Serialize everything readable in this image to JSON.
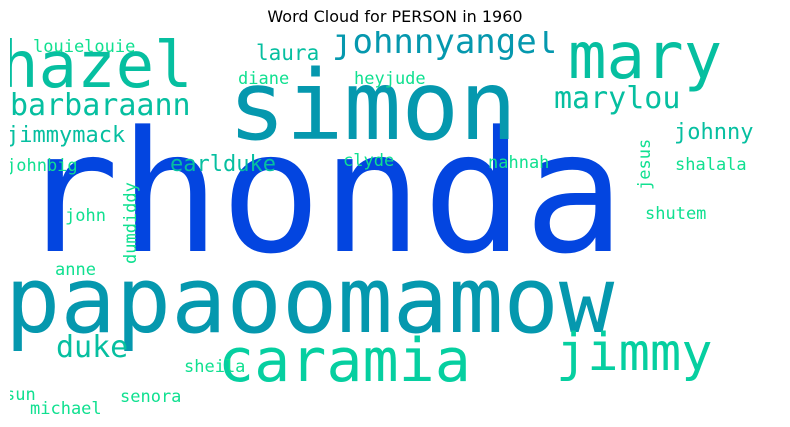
{
  "chart_data": {
    "type": "wordcloud",
    "title": "Word Cloud for PERSON in 1960",
    "words": [
      {
        "text": "rhonda",
        "color": "#0345e0"
      },
      {
        "text": "papaoomamow",
        "color": "#0598ae"
      },
      {
        "text": "simon",
        "color": "#0598ae"
      },
      {
        "text": "hazel",
        "color": "#06bfa0"
      },
      {
        "text": "mary",
        "color": "#06bfa0"
      },
      {
        "text": "caramia",
        "color": "#06cfa0"
      },
      {
        "text": "jimmy",
        "color": "#06cfa0"
      },
      {
        "text": "johnnyangel",
        "color": "#0598ae"
      },
      {
        "text": "barbaraann",
        "color": "#06bfa0"
      },
      {
        "text": "marylou",
        "color": "#06bfa0"
      },
      {
        "text": "duke",
        "color": "#06bfa0"
      },
      {
        "text": "jimmymack",
        "color": "#06bfa0"
      },
      {
        "text": "earlduke",
        "color": "#06bfa0"
      },
      {
        "text": "johnny",
        "color": "#06bfa0"
      },
      {
        "text": "laura",
        "color": "#06bfa0"
      },
      {
        "text": "louielouie",
        "color": "#10e090"
      },
      {
        "text": "diane",
        "color": "#10e090"
      },
      {
        "text": "heyjude",
        "color": "#10e090"
      },
      {
        "text": "clyde",
        "color": "#10e090"
      },
      {
        "text": "nahnah",
        "color": "#10e090"
      },
      {
        "text": "johnbig",
        "color": "#10e090"
      },
      {
        "text": "jesus",
        "color": "#10e090"
      },
      {
        "text": "shalala",
        "color": "#10e090"
      },
      {
        "text": "john",
        "color": "#10e090"
      },
      {
        "text": "dumdiddy",
        "color": "#10e090"
      },
      {
        "text": "shutem",
        "color": "#10e090"
      },
      {
        "text": "anne",
        "color": "#10e090"
      },
      {
        "text": "sheila",
        "color": "#10e090"
      },
      {
        "text": "senora",
        "color": "#10e090"
      },
      {
        "text": "sun",
        "color": "#10e090"
      },
      {
        "text": "michael",
        "color": "#10e090"
      }
    ]
  }
}
